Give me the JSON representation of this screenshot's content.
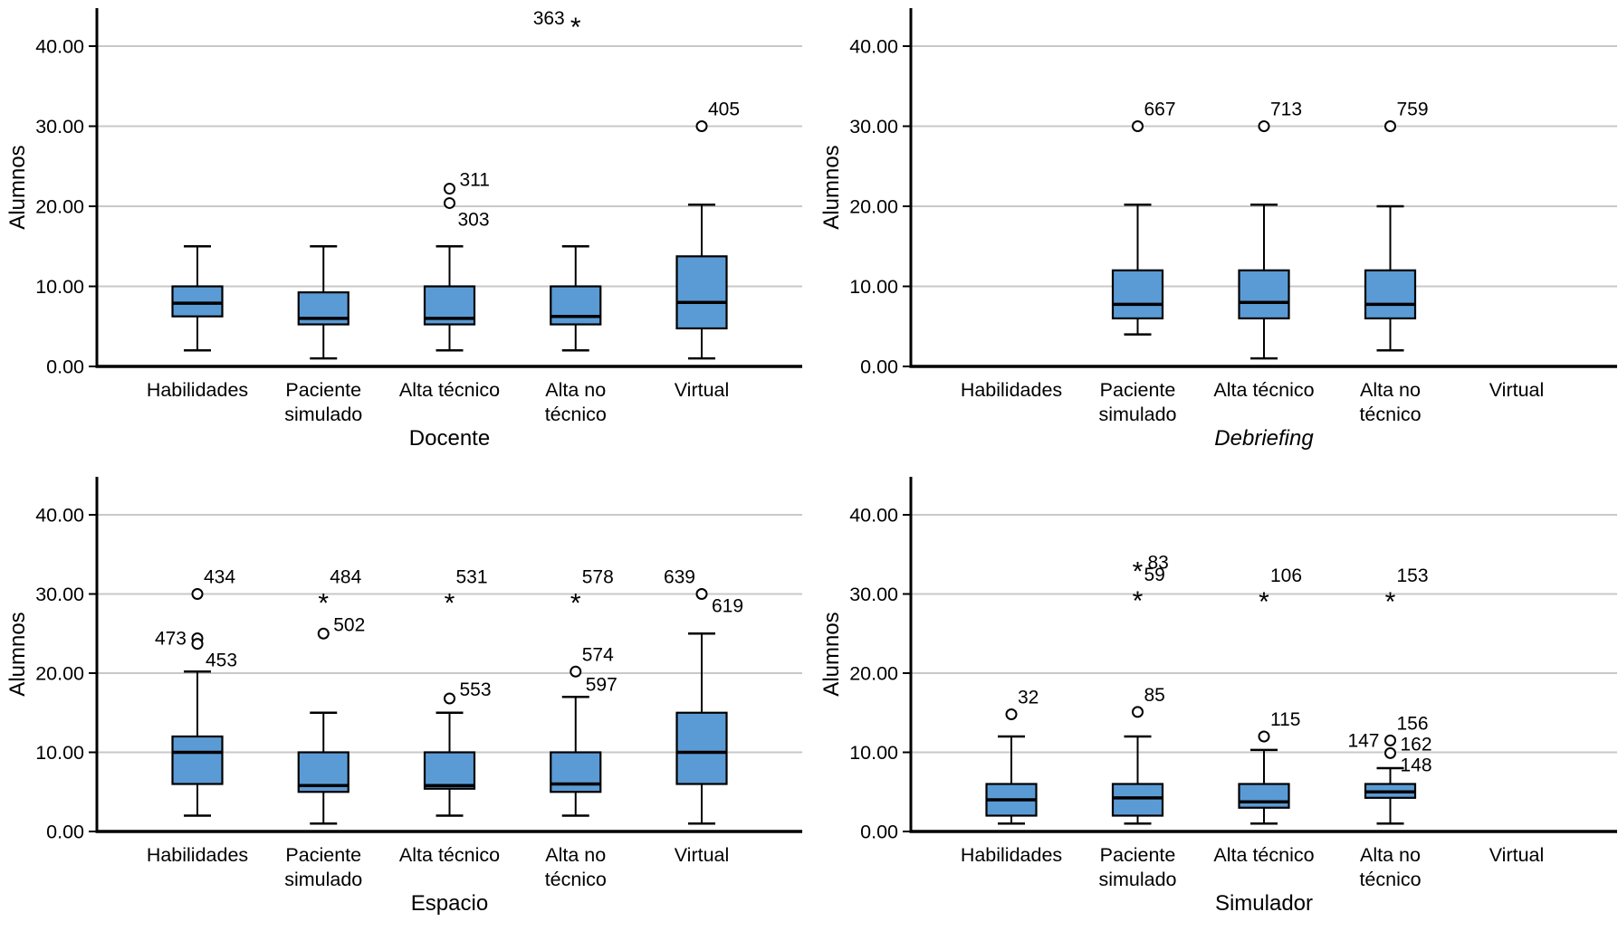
{
  "chart_data": {
    "type": "boxplot",
    "layout": "2x2-grid",
    "ylabel": "Alumnos",
    "ylim": [
      0,
      45
    ],
    "yticks": [
      0,
      10,
      20,
      30,
      40
    ],
    "ytick_labels": [
      "0.00",
      "10.00",
      "20.00",
      "30.00",
      "40.00"
    ],
    "grid": "horizontal",
    "legend": "none",
    "colors": {
      "box_fill": "#5b9bd5",
      "box_stroke": "#000000",
      "grid": "#c8c8c8",
      "axis": "#000000",
      "background": "#ffffff"
    },
    "categories": [
      {
        "label": "Habilidades",
        "lines": [
          "Habilidades"
        ]
      },
      {
        "label": "Paciente simulado",
        "lines": [
          "Paciente",
          "simulado"
        ]
      },
      {
        "label": "Alta técnico",
        "lines": [
          "Alta técnico"
        ]
      },
      {
        "label": "Alta no técnico",
        "lines": [
          "Alta no",
          "técnico"
        ]
      },
      {
        "label": "Virtual",
        "lines": [
          "Virtual"
        ]
      }
    ],
    "panels": [
      {
        "title": "Docente",
        "title_italic": false,
        "boxes": [
          {
            "category": 0,
            "whisker_low": 2,
            "q1": 6.25,
            "median": 7.9,
            "q3": 10,
            "whisker_high": 15
          },
          {
            "category": 1,
            "whisker_low": 1,
            "q1": 5.25,
            "median": 6,
            "q3": 9.25,
            "whisker_high": 15
          },
          {
            "category": 2,
            "whisker_low": 2,
            "q1": 5.25,
            "median": 6,
            "q3": 10,
            "whisker_high": 15
          },
          {
            "category": 3,
            "whisker_low": 2,
            "q1": 5.25,
            "median": 6.25,
            "q3": 10,
            "whisker_high": 15
          },
          {
            "category": 4,
            "whisker_low": 1,
            "q1": 4.75,
            "median": 8,
            "q3": 13.75,
            "whisker_high": 20.2
          }
        ],
        "outliers": [
          {
            "category": 2,
            "value": 22.2,
            "marker": "circle",
            "label": "311",
            "label_pos": "right-up"
          },
          {
            "category": 2,
            "value": 20.4,
            "marker": "circle",
            "label": "303",
            "label_pos": "below-right"
          },
          {
            "category": 3,
            "value": 43.5,
            "marker": "asterisk",
            "label": "363",
            "label_pos": "left"
          },
          {
            "category": 4,
            "value": 30,
            "marker": "circle",
            "label": "405",
            "label_pos": "above-right"
          }
        ]
      },
      {
        "title": "Debriefing",
        "title_italic": true,
        "boxes": [
          null,
          {
            "category": 1,
            "whisker_low": 4,
            "q1": 6,
            "median": 7.75,
            "q3": 12,
            "whisker_high": 20.2
          },
          {
            "category": 2,
            "whisker_low": 1,
            "q1": 6,
            "median": 8,
            "q3": 12,
            "whisker_high": 20.2
          },
          {
            "category": 3,
            "whisker_low": 2,
            "q1": 6,
            "median": 7.75,
            "q3": 12,
            "whisker_high": 20
          },
          null
        ],
        "outliers": [
          {
            "category": 1,
            "value": 30,
            "marker": "circle",
            "label": "667",
            "label_pos": "above-right"
          },
          {
            "category": 2,
            "value": 30,
            "marker": "circle",
            "label": "713",
            "label_pos": "above-right"
          },
          {
            "category": 3,
            "value": 30,
            "marker": "circle",
            "label": "759",
            "label_pos": "above-right"
          }
        ]
      },
      {
        "title": "Espacio",
        "title_italic": false,
        "boxes": [
          {
            "category": 0,
            "whisker_low": 2,
            "q1": 6,
            "median": 10,
            "q3": 12,
            "whisker_high": 20.2
          },
          {
            "category": 1,
            "whisker_low": 1,
            "q1": 5,
            "median": 5.8,
            "q3": 10,
            "whisker_high": 15
          },
          {
            "category": 2,
            "whisker_low": 2,
            "q1": 5.4,
            "median": 5.8,
            "q3": 10,
            "whisker_high": 15
          },
          {
            "category": 3,
            "whisker_low": 2,
            "q1": 5,
            "median": 6,
            "q3": 10,
            "whisker_high": 17
          },
          {
            "category": 4,
            "whisker_low": 1,
            "q1": 6,
            "median": 10,
            "q3": 15,
            "whisker_high": 25
          }
        ],
        "outliers": [
          {
            "category": 0,
            "value": 30,
            "marker": "circle",
            "label": "434",
            "label_pos": "above-right"
          },
          {
            "category": 0,
            "value": 24.4,
            "marker": "circle",
            "label": "473",
            "label_pos": "left"
          },
          {
            "category": 0,
            "value": 23.7,
            "marker": "circle",
            "label": "453",
            "label_pos": "below-right"
          },
          {
            "category": 1,
            "value": 30,
            "marker": "asterisk",
            "label": "484",
            "label_pos": "above-right"
          },
          {
            "category": 1,
            "value": 25,
            "marker": "circle",
            "label": "502",
            "label_pos": "right-up"
          },
          {
            "category": 2,
            "value": 30,
            "marker": "asterisk",
            "label": "531",
            "label_pos": "above-right"
          },
          {
            "category": 2,
            "value": 16.8,
            "marker": "circle",
            "label": "553",
            "label_pos": "right-up"
          },
          {
            "category": 3,
            "value": 30,
            "marker": "asterisk",
            "label": "578",
            "label_pos": "above-right"
          },
          {
            "category": 3,
            "value": 20.2,
            "marker": "circle",
            "label": "574",
            "label_pos": "above-right"
          },
          {
            "category": 3,
            "value": 18.6,
            "marker": "none",
            "label": "597",
            "label_pos": "right"
          },
          {
            "category": 4,
            "value": 30,
            "marker": "circle",
            "label": "639",
            "label_pos": "above-left"
          },
          {
            "category": 4,
            "value": 28.5,
            "marker": "none",
            "label": "619",
            "label_pos": "right"
          }
        ]
      },
      {
        "title": "Simulador",
        "title_italic": false,
        "boxes": [
          {
            "category": 0,
            "whisker_low": 1,
            "q1": 2,
            "median": 4,
            "q3": 6,
            "whisker_high": 12
          },
          {
            "category": 1,
            "whisker_low": 1,
            "q1": 2,
            "median": 4.25,
            "q3": 6,
            "whisker_high": 12
          },
          {
            "category": 2,
            "whisker_low": 1,
            "q1": 3,
            "median": 3.75,
            "q3": 6,
            "whisker_high": 10.3
          },
          {
            "category": 3,
            "whisker_low": 1,
            "q1": 4.25,
            "median": 5,
            "q3": 6,
            "whisker_high": 8
          },
          null
        ],
        "outliers": [
          {
            "category": 0,
            "value": 14.8,
            "marker": "circle",
            "label": "32",
            "label_pos": "above-right"
          },
          {
            "category": 1,
            "value": 34,
            "marker": "asterisk",
            "label": "83",
            "label_pos": "right"
          },
          {
            "category": 1,
            "value": 30.3,
            "marker": "asterisk",
            "label": "59",
            "label_pos": "above-right"
          },
          {
            "category": 1,
            "value": 15.1,
            "marker": "circle",
            "label": "85",
            "label_pos": "above-right"
          },
          {
            "category": 2,
            "value": 30.2,
            "marker": "asterisk",
            "label": "106",
            "label_pos": "above-right"
          },
          {
            "category": 2,
            "value": 12,
            "marker": "circle",
            "label": "115",
            "label_pos": "above-right"
          },
          {
            "category": 3,
            "value": 30.2,
            "marker": "asterisk",
            "label": "153",
            "label_pos": "above-right"
          },
          {
            "category": 3,
            "value": 11.5,
            "marker": "circle",
            "label": "156",
            "label_pos": "above-right"
          },
          {
            "category": 3,
            "value": 11.5,
            "marker": "none",
            "label": "147",
            "label_pos": "left"
          },
          {
            "category": 3,
            "value": 9.9,
            "marker": "circle",
            "label": "162",
            "label_pos": "right-up"
          },
          {
            "category": 3,
            "value": 8.4,
            "marker": "none",
            "label": "148",
            "label_pos": "right"
          }
        ]
      }
    ]
  }
}
